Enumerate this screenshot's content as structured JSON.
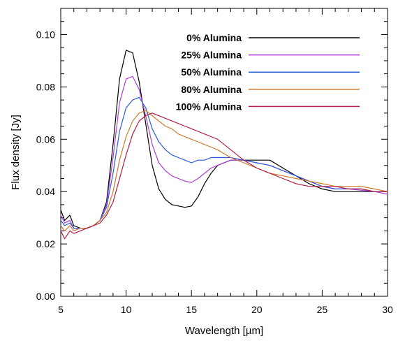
{
  "chart_data": {
    "type": "line",
    "xlabel": "Wavelength [µm]",
    "ylabel": "Flux density [Jy]",
    "xlim": [
      5,
      30
    ],
    "ylim": [
      0.0,
      0.11
    ],
    "x_ticks": [
      5,
      10,
      15,
      20,
      25,
      30
    ],
    "x_tick_labels": [
      "5",
      "10",
      "15",
      "20",
      "25",
      "30"
    ],
    "y_ticks": [
      0.0,
      0.02,
      0.04,
      0.06,
      0.08,
      0.1
    ],
    "y_tick_labels": [
      "0.00",
      "0.02",
      "0.04",
      "0.06",
      "0.08",
      "0.10"
    ],
    "grid": false,
    "legend_position": "top-right",
    "series": [
      {
        "name": "0% Alumina",
        "color": "#000000",
        "x": [
          5,
          5.3,
          5.7,
          6,
          6.5,
          7,
          7.5,
          8,
          8.5,
          9,
          9.5,
          10,
          10.5,
          11,
          11.5,
          12,
          12.5,
          13,
          13.5,
          14,
          14.5,
          15,
          15.5,
          16,
          16.5,
          17,
          18,
          19,
          20,
          21,
          22,
          23,
          24,
          25,
          26,
          27,
          28,
          29,
          30
        ],
        "y": [
          0.033,
          0.029,
          0.031,
          0.027,
          0.026,
          0.026,
          0.027,
          0.029,
          0.036,
          0.058,
          0.083,
          0.094,
          0.093,
          0.082,
          0.066,
          0.05,
          0.041,
          0.037,
          0.035,
          0.0345,
          0.034,
          0.0345,
          0.038,
          0.043,
          0.047,
          0.05,
          0.052,
          0.052,
          0.052,
          0.052,
          0.049,
          0.046,
          0.043,
          0.041,
          0.04,
          0.04,
          0.04,
          0.04,
          0.04
        ]
      },
      {
        "name": "25% Alumina",
        "color": "#a83dd6",
        "x": [
          5,
          5.3,
          5.7,
          6,
          6.5,
          7,
          7.5,
          8,
          8.5,
          9,
          9.5,
          10,
          10.5,
          11,
          11.5,
          12,
          12.5,
          13,
          13.5,
          14,
          14.5,
          15,
          15.5,
          16,
          16.5,
          17,
          18,
          19,
          20,
          21,
          22,
          23,
          24,
          25,
          26,
          27,
          28,
          29,
          30
        ],
        "y": [
          0.031,
          0.028,
          0.029,
          0.026,
          0.026,
          0.026,
          0.027,
          0.029,
          0.035,
          0.053,
          0.074,
          0.083,
          0.084,
          0.079,
          0.069,
          0.058,
          0.051,
          0.048,
          0.046,
          0.045,
          0.044,
          0.0435,
          0.045,
          0.047,
          0.049,
          0.05,
          0.052,
          0.052,
          0.051,
          0.05,
          0.048,
          0.046,
          0.044,
          0.042,
          0.041,
          0.041,
          0.0405,
          0.04,
          0.039
        ]
      },
      {
        "name": "50% Alumina",
        "color": "#2a5bd7",
        "x": [
          5,
          5.3,
          5.7,
          6,
          6.5,
          7,
          7.5,
          8,
          8.5,
          9,
          9.5,
          10,
          10.5,
          11,
          11.5,
          12,
          12.5,
          13,
          13.5,
          14,
          14.5,
          15,
          15.5,
          16,
          16.5,
          17,
          18,
          19,
          20,
          21,
          22,
          23,
          24,
          25,
          26,
          27,
          28,
          29,
          30
        ],
        "y": [
          0.029,
          0.027,
          0.028,
          0.026,
          0.026,
          0.026,
          0.027,
          0.029,
          0.034,
          0.047,
          0.063,
          0.072,
          0.075,
          0.076,
          0.072,
          0.064,
          0.059,
          0.056,
          0.054,
          0.053,
          0.052,
          0.051,
          0.052,
          0.052,
          0.053,
          0.053,
          0.053,
          0.052,
          0.051,
          0.05,
          0.048,
          0.046,
          0.044,
          0.042,
          0.041,
          0.041,
          0.041,
          0.04,
          0.04
        ]
      },
      {
        "name": "80% Alumina",
        "color": "#d07a2c",
        "x": [
          5,
          5.3,
          5.7,
          6,
          6.5,
          7,
          7.5,
          8,
          8.5,
          9,
          9.5,
          10,
          10.5,
          11,
          11.5,
          12,
          12.5,
          13,
          13.5,
          14,
          14.5,
          15,
          15.5,
          16,
          16.5,
          17,
          18,
          19,
          20,
          21,
          22,
          23,
          24,
          25,
          26,
          27,
          28,
          29,
          30
        ],
        "y": [
          0.027,
          0.025,
          0.027,
          0.025,
          0.026,
          0.026,
          0.027,
          0.029,
          0.032,
          0.04,
          0.052,
          0.061,
          0.067,
          0.07,
          0.071,
          0.069,
          0.067,
          0.065,
          0.064,
          0.062,
          0.061,
          0.06,
          0.059,
          0.058,
          0.057,
          0.056,
          0.053,
          0.051,
          0.049,
          0.047,
          0.046,
          0.045,
          0.044,
          0.043,
          0.042,
          0.042,
          0.042,
          0.041,
          0.04
        ]
      },
      {
        "name": "100% Alumina",
        "color": "#b41e46",
        "x": [
          5,
          5.3,
          5.7,
          6,
          6.5,
          7,
          7.5,
          8,
          8.5,
          9,
          9.5,
          10,
          10.5,
          11,
          11.5,
          12,
          12.5,
          13,
          13.5,
          14,
          14.5,
          15,
          15.5,
          16,
          16.5,
          17,
          18,
          19,
          20,
          21,
          22,
          23,
          24,
          25,
          26,
          27,
          28,
          29,
          30
        ],
        "y": [
          0.025,
          0.022,
          0.025,
          0.024,
          0.025,
          0.026,
          0.027,
          0.028,
          0.031,
          0.036,
          0.045,
          0.054,
          0.062,
          0.067,
          0.069,
          0.07,
          0.069,
          0.068,
          0.067,
          0.066,
          0.065,
          0.064,
          0.063,
          0.062,
          0.061,
          0.06,
          0.056,
          0.052,
          0.049,
          0.047,
          0.045,
          0.043,
          0.042,
          0.042,
          0.042,
          0.041,
          0.041,
          0.04,
          0.04
        ]
      }
    ]
  }
}
